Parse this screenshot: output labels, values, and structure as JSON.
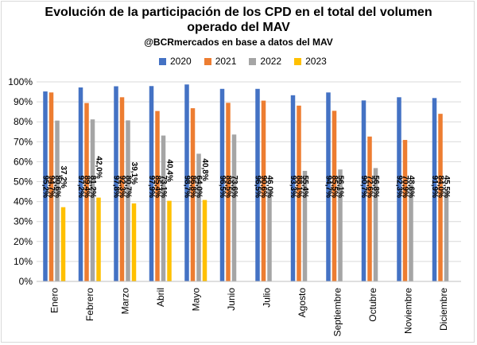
{
  "chart_data": {
    "type": "bar",
    "title": "Evolución de la participación de los CPD en el total del volumen operado del MAV",
    "subtitle": "@BCRmercados en base a datos del MAV",
    "categories": [
      "Enero",
      "Febrero",
      "Marzo",
      "Abril",
      "Mayo",
      "Junio",
      "Julio",
      "Agosto",
      "Septiembre",
      "Octubre",
      "Noviembre",
      "Diciembre"
    ],
    "series": [
      {
        "name": "2020",
        "color": "#4472c4",
        "values": [
          95.2,
          97.2,
          97.8,
          97.9,
          98.7,
          96.5,
          96.5,
          93.3,
          94.7,
          90.7,
          92.3,
          91.9
        ],
        "labels": [
          "95,2%",
          "97,2%",
          "97,8%",
          "97,9%",
          "98,7%",
          "96,5%",
          "96,5%",
          "93,3%",
          "94,7%",
          "90,7%",
          "92,3%",
          "91,9%"
        ]
      },
      {
        "name": "2021",
        "color": "#ed7d31",
        "values": [
          94.7,
          89.4,
          92.3,
          85.4,
          86.8,
          89.5,
          90.6,
          88.1,
          85.5,
          72.6,
          70.9,
          84.0
        ],
        "labels": [
          "94,7%",
          "89,4%",
          "92,3%",
          "85,4%",
          "86,8%",
          "89,5%",
          "90,6%",
          "88,1%",
          "85,5%",
          "72,6%",
          "70,9%",
          "84,0%"
        ]
      },
      {
        "name": "2022",
        "color": "#a5a5a5",
        "values": [
          80.6,
          81.2,
          80.7,
          73.1,
          64.0,
          73.6,
          46.0,
          55.4,
          56.1,
          56.8,
          48.6,
          45.5
        ],
        "labels": [
          "80,6%",
          "81,2%",
          "80,7%",
          "73,1%",
          "64,0%",
          "73,6%",
          "46,0%",
          "55,4%",
          "56,1%",
          "56,8%",
          "48,6%",
          "45,5%"
        ]
      },
      {
        "name": "2023",
        "color": "#ffc000",
        "values": [
          37.2,
          42.0,
          39.1,
          40.4,
          40.8,
          null,
          null,
          null,
          null,
          null,
          null,
          null
        ],
        "labels": [
          "37,2%",
          "42,0%",
          "39,1%",
          "40,4%",
          "40,8%",
          "",
          "",
          "",
          "",
          "",
          "",
          ""
        ]
      }
    ],
    "ylim": [
      0,
      100
    ],
    "yticks": [
      "0%",
      "10%",
      "20%",
      "30%",
      "40%",
      "50%",
      "60%",
      "70%",
      "80%",
      "90%",
      "100%"
    ],
    "grid": true,
    "legend_position": "top"
  }
}
